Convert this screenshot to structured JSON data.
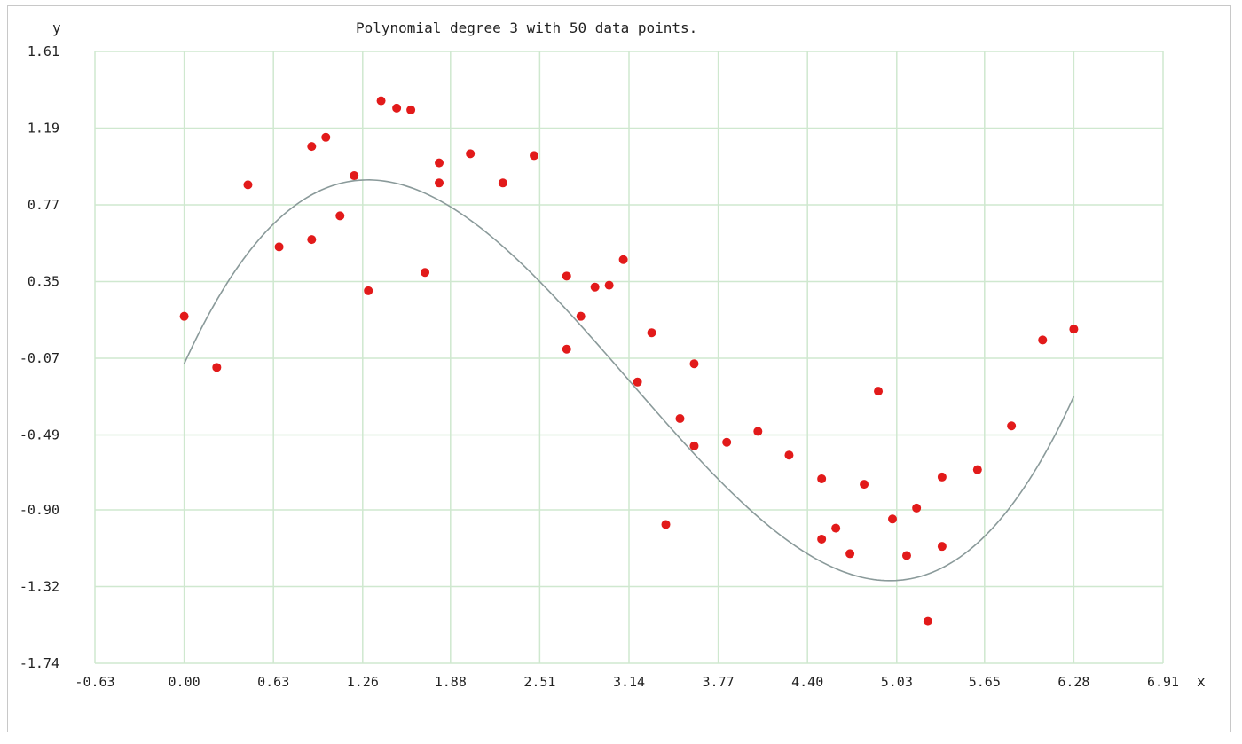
{
  "chart_data": {
    "type": "scatter",
    "title": "Polynomial degree 3 with 50 data points.",
    "xlabel": "x",
    "ylabel": "y",
    "xlim": [
      -0.63,
      6.91
    ],
    "ylim": [
      -1.74,
      1.61
    ],
    "x_ticks": [
      "-0.63",
      "0.00",
      "0.63",
      "1.26",
      "1.88",
      "2.51",
      "3.14",
      "3.77",
      "4.40",
      "5.03",
      "5.65",
      "6.28",
      "6.91"
    ],
    "y_ticks": [
      "1.61",
      "1.19",
      "0.77",
      "0.35",
      "-0.07",
      "-0.49",
      "-0.90",
      "-1.32",
      "-1.74"
    ],
    "grid": true,
    "colors": {
      "points": "#e21a1a",
      "curve": "#8a9a9a",
      "grid": "#cfe8cf"
    },
    "series": [
      {
        "kind": "points",
        "x": [
          0.0,
          0.23,
          0.45,
          0.67,
          0.9,
          0.9,
          1.0,
          1.1,
          1.2,
          1.3,
          1.39,
          1.5,
          1.6,
          1.7,
          1.8,
          1.8,
          2.02,
          2.25,
          2.47,
          2.7,
          2.7,
          2.8,
          2.9,
          3.0,
          3.1,
          3.2,
          3.3,
          3.4,
          3.5,
          3.6,
          3.6,
          3.83,
          4.05,
          4.27,
          4.5,
          4.5,
          4.6,
          4.7,
          4.8,
          4.9,
          5.0,
          5.1,
          5.17,
          5.25,
          5.35,
          5.35,
          5.6,
          5.84,
          6.06,
          6.28
        ],
        "y": [
          0.16,
          -0.12,
          0.88,
          0.54,
          0.58,
          1.09,
          1.14,
          0.71,
          0.93,
          0.3,
          1.34,
          1.3,
          1.29,
          0.4,
          1.0,
          0.89,
          1.05,
          0.89,
          1.04,
          0.38,
          -0.02,
          0.16,
          0.32,
          0.33,
          0.47,
          -0.2,
          0.07,
          -0.98,
          -0.4,
          -0.1,
          -0.55,
          -0.53,
          -0.47,
          -0.6,
          -0.73,
          -1.06,
          -1.0,
          -1.14,
          -0.76,
          -0.25,
          -0.95,
          -1.15,
          -0.89,
          -1.51,
          -0.72,
          -1.1,
          -0.68,
          -0.44,
          0.03,
          0.09
        ]
      },
      {
        "kind": "fit",
        "coefficients": [
          -0.1,
          1.7,
          -0.826,
          0.0877
        ]
      }
    ]
  }
}
